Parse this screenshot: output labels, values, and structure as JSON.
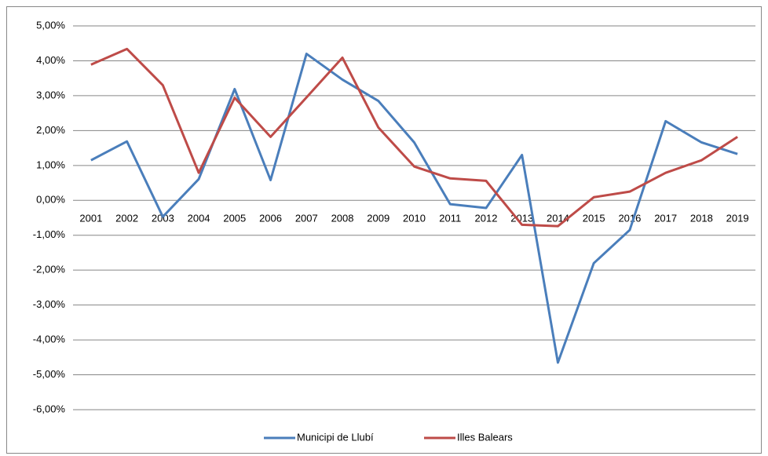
{
  "chart_data": {
    "type": "line",
    "categories": [
      "2001",
      "2002",
      "2003",
      "2004",
      "2005",
      "2006",
      "2007",
      "2008",
      "2009",
      "2010",
      "2011",
      "2012",
      "2013",
      "2014",
      "2015",
      "2016",
      "2017",
      "2018",
      "2019"
    ],
    "series": [
      {
        "name": "Municipi de Llubí",
        "color": "#4a7ebb",
        "values": [
          1.15,
          1.69,
          -0.47,
          0.61,
          3.19,
          0.58,
          4.2,
          3.46,
          2.85,
          1.66,
          -0.11,
          -0.22,
          1.3,
          -4.65,
          -1.8,
          -0.85,
          2.27,
          1.66,
          1.33
        ]
      },
      {
        "name": "Illes Balears",
        "color": "#be4b48",
        "values": [
          3.89,
          4.34,
          3.3,
          0.79,
          2.94,
          1.82,
          2.95,
          4.09,
          2.09,
          0.97,
          0.63,
          0.56,
          -0.7,
          -0.74,
          0.09,
          0.25,
          0.79,
          1.15,
          1.82
        ]
      }
    ],
    "ylim": [
      -6,
      5
    ],
    "yticks": [
      {
        "value": -6,
        "label": "-6,00%"
      },
      {
        "value": -5,
        "label": "-5,00%"
      },
      {
        "value": -4,
        "label": "-4,00%"
      },
      {
        "value": -3,
        "label": "-3,00%"
      },
      {
        "value": -2,
        "label": "-2,00%"
      },
      {
        "value": -1,
        "label": "-1,00%"
      },
      {
        "value": 0,
        "label": "0,00%"
      },
      {
        "value": 1,
        "label": "1,00%"
      },
      {
        "value": 2,
        "label": "2,00%"
      },
      {
        "value": 3,
        "label": "3,00%"
      },
      {
        "value": 4,
        "label": "4,00%"
      },
      {
        "value": 5,
        "label": "5,00%"
      }
    ],
    "grid": true,
    "legend": "bottom"
  }
}
